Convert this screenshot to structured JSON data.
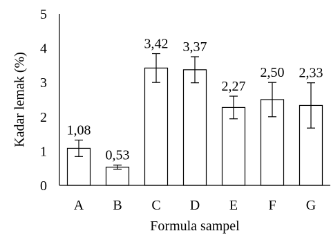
{
  "chart_data": {
    "type": "bar",
    "categories": [
      "A",
      "B",
      "C",
      "D",
      "E",
      "F",
      "G"
    ],
    "values": [
      1.08,
      0.53,
      3.42,
      3.37,
      2.27,
      2.5,
      2.33
    ],
    "value_labels": [
      "1,08",
      "0,53",
      "3,42",
      "3,37",
      "2,27",
      "2,50",
      "2,33"
    ],
    "error": [
      0.24,
      0.06,
      0.42,
      0.38,
      0.33,
      0.5,
      0.66
    ],
    "xlabel": "Formula sampel",
    "ylabel": "Kadar lemak (%)",
    "ylim": [
      0,
      5
    ],
    "yticks": [
      0,
      1,
      2,
      3,
      4,
      5
    ],
    "grid": false,
    "bar_fill": "#ffffff",
    "bar_stroke": "#000000"
  }
}
